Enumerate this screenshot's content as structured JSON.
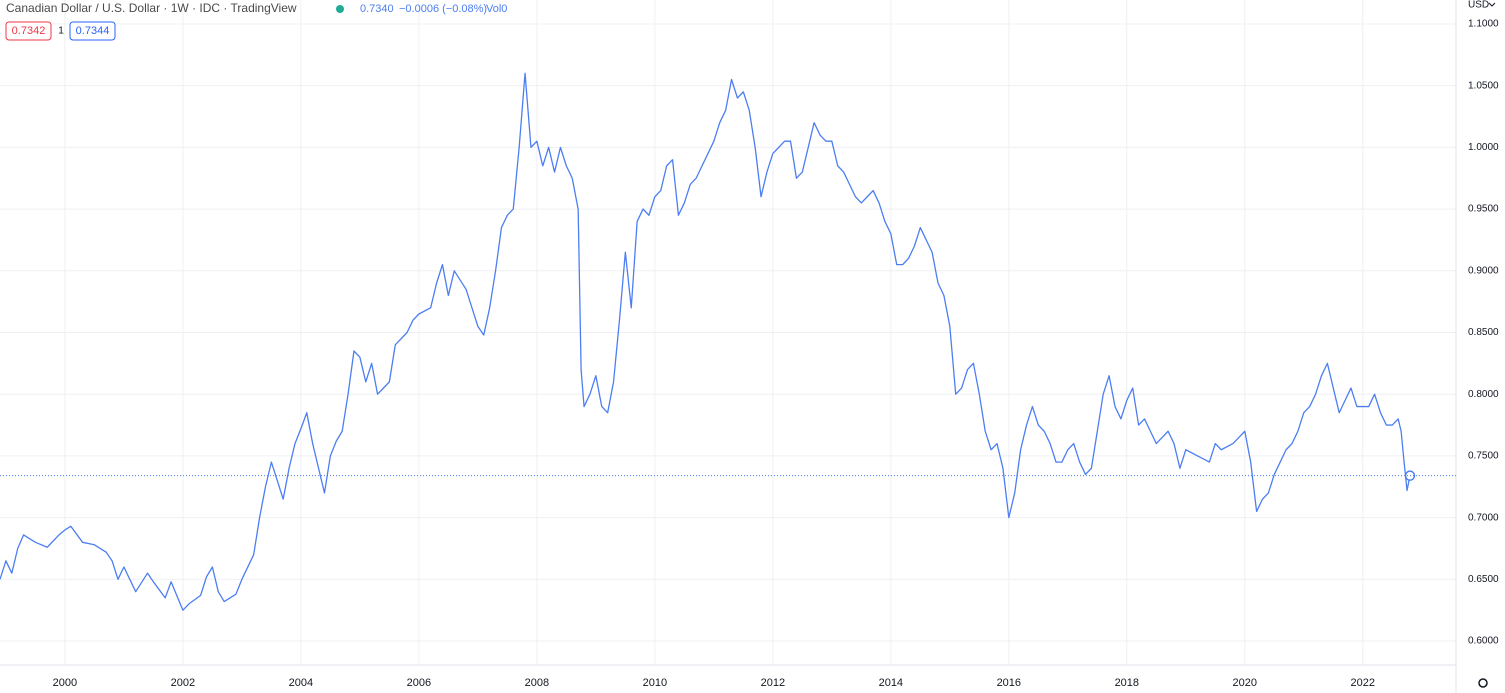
{
  "chart_data": {
    "type": "line",
    "title": "Canadian Dollar / U.S. Dollar · 1W · IDC · TradingView",
    "last_price": {
      "value": 0.734,
      "label": "0.7340"
    },
    "change": "−0.0006 (−0.08%)",
    "volume": "Vol0",
    "bid": "0.7342",
    "spread": "1",
    "ask": "0.7344",
    "currency": "USD",
    "grid": true,
    "series": [
      {
        "name": "CADUSD",
        "color": "#4c7ef2",
        "x": [
          1998.9,
          1999.0,
          1999.1,
          1999.2,
          1999.3,
          1999.5,
          1999.7,
          1999.9,
          2000.0,
          2000.1,
          2000.3,
          2000.5,
          2000.7,
          2000.8,
          2000.9,
          2001.0,
          2001.2,
          2001.4,
          2001.5,
          2001.7,
          2001.8,
          2002.0,
          2002.1,
          2002.3,
          2002.4,
          2002.5,
          2002.6,
          2002.7,
          2002.9,
          2003.0,
          2003.2,
          2003.3,
          2003.4,
          2003.5,
          2003.6,
          2003.7,
          2003.8,
          2003.9,
          2004.0,
          2004.1,
          2004.2,
          2004.3,
          2004.4,
          2004.5,
          2004.6,
          2004.7,
          2004.8,
          2004.9,
          2005.0,
          2005.1,
          2005.2,
          2005.3,
          2005.5,
          2005.6,
          2005.8,
          2005.9,
          2006.0,
          2006.2,
          2006.3,
          2006.4,
          2006.5,
          2006.6,
          2006.8,
          2006.9,
          2007.0,
          2007.1,
          2007.2,
          2007.3,
          2007.4,
          2007.5,
          2007.6,
          2007.7,
          2007.8,
          2007.9,
          2008.0,
          2008.1,
          2008.2,
          2008.3,
          2008.4,
          2008.5,
          2008.6,
          2008.7,
          2008.75,
          2008.8,
          2008.9,
          2009.0,
          2009.1,
          2009.2,
          2009.3,
          2009.4,
          2009.5,
          2009.6,
          2009.7,
          2009.8,
          2009.9,
          2010.0,
          2010.1,
          2010.2,
          2010.3,
          2010.4,
          2010.5,
          2010.6,
          2010.7,
          2010.8,
          2010.9,
          2011.0,
          2011.1,
          2011.2,
          2011.3,
          2011.4,
          2011.5,
          2011.6,
          2011.7,
          2011.8,
          2011.9,
          2012.0,
          2012.1,
          2012.2,
          2012.3,
          2012.4,
          2012.5,
          2012.6,
          2012.7,
          2012.8,
          2012.9,
          2013.0,
          2013.1,
          2013.2,
          2013.3,
          2013.4,
          2013.5,
          2013.6,
          2013.7,
          2013.8,
          2013.9,
          2014.0,
          2014.1,
          2014.2,
          2014.3,
          2014.4,
          2014.5,
          2014.6,
          2014.7,
          2014.8,
          2014.9,
          2015.0,
          2015.1,
          2015.2,
          2015.3,
          2015.4,
          2015.5,
          2015.6,
          2015.7,
          2015.8,
          2015.9,
          2016.0,
          2016.1,
          2016.2,
          2016.3,
          2016.4,
          2016.5,
          2016.6,
          2016.7,
          2016.8,
          2016.9,
          2017.0,
          2017.1,
          2017.2,
          2017.3,
          2017.4,
          2017.5,
          2017.6,
          2017.7,
          2017.8,
          2017.9,
          2018.0,
          2018.1,
          2018.2,
          2018.3,
          2018.4,
          2018.5,
          2018.6,
          2018.7,
          2018.8,
          2018.9,
          2019.0,
          2019.2,
          2019.4,
          2019.5,
          2019.6,
          2019.8,
          2019.9,
          2020.0,
          2020.1,
          2020.2,
          2020.3,
          2020.4,
          2020.5,
          2020.6,
          2020.7,
          2020.8,
          2020.9,
          2021.0,
          2021.1,
          2021.2,
          2021.3,
          2021.4,
          2021.5,
          2021.6,
          2021.7,
          2021.8,
          2021.9,
          2022.0,
          2022.1,
          2022.2,
          2022.3,
          2022.4,
          2022.5,
          2022.6,
          2022.65,
          2022.7,
          2022.75,
          2022.8
        ],
        "values": [
          0.65,
          0.665,
          0.655,
          0.675,
          0.686,
          0.68,
          0.676,
          0.686,
          0.69,
          0.693,
          0.68,
          0.678,
          0.672,
          0.665,
          0.65,
          0.66,
          0.64,
          0.655,
          0.648,
          0.635,
          0.648,
          0.625,
          0.63,
          0.637,
          0.652,
          0.66,
          0.64,
          0.632,
          0.638,
          0.65,
          0.67,
          0.7,
          0.725,
          0.745,
          0.73,
          0.715,
          0.74,
          0.76,
          0.772,
          0.785,
          0.76,
          0.74,
          0.72,
          0.75,
          0.762,
          0.77,
          0.8,
          0.835,
          0.83,
          0.81,
          0.825,
          0.8,
          0.81,
          0.84,
          0.85,
          0.86,
          0.865,
          0.87,
          0.89,
          0.905,
          0.88,
          0.9,
          0.885,
          0.87,
          0.855,
          0.848,
          0.87,
          0.9,
          0.935,
          0.945,
          0.95,
          1.0,
          1.06,
          1.0,
          1.005,
          0.985,
          1.0,
          0.98,
          1.0,
          0.985,
          0.975,
          0.95,
          0.82,
          0.79,
          0.8,
          0.815,
          0.79,
          0.785,
          0.81,
          0.86,
          0.915,
          0.87,
          0.94,
          0.95,
          0.945,
          0.96,
          0.965,
          0.985,
          0.99,
          0.945,
          0.955,
          0.97,
          0.975,
          0.985,
          0.995,
          1.005,
          1.02,
          1.03,
          1.055,
          1.04,
          1.045,
          1.03,
          1.0,
          0.96,
          0.98,
          0.995,
          1.0,
          1.005,
          1.005,
          0.975,
          0.98,
          1.0,
          1.02,
          1.01,
          1.005,
          1.005,
          0.985,
          0.98,
          0.97,
          0.96,
          0.955,
          0.96,
          0.965,
          0.955,
          0.94,
          0.93,
          0.905,
          0.905,
          0.91,
          0.92,
          0.935,
          0.925,
          0.915,
          0.89,
          0.88,
          0.855,
          0.8,
          0.805,
          0.82,
          0.825,
          0.8,
          0.77,
          0.755,
          0.76,
          0.74,
          0.7,
          0.72,
          0.755,
          0.775,
          0.79,
          0.775,
          0.77,
          0.76,
          0.745,
          0.745,
          0.755,
          0.76,
          0.745,
          0.735,
          0.74,
          0.77,
          0.8,
          0.815,
          0.79,
          0.78,
          0.795,
          0.805,
          0.775,
          0.78,
          0.77,
          0.76,
          0.765,
          0.77,
          0.76,
          0.74,
          0.755,
          0.75,
          0.745,
          0.76,
          0.755,
          0.76,
          0.765,
          0.77,
          0.745,
          0.705,
          0.715,
          0.72,
          0.735,
          0.745,
          0.755,
          0.76,
          0.77,
          0.785,
          0.79,
          0.8,
          0.815,
          0.825,
          0.805,
          0.785,
          0.795,
          0.805,
          0.79,
          0.79,
          0.79,
          0.8,
          0.785,
          0.775,
          0.775,
          0.78,
          0.77,
          0.745,
          0.722,
          0.734
        ]
      }
    ],
    "xlim": [
      1998.9,
      2023.58
    ],
    "xticks": [
      2000,
      2002,
      2004,
      2006,
      2008,
      2010,
      2012,
      2014,
      2016,
      2018,
      2020,
      2022
    ],
    "ylim": [
      0.5806,
      1.1194
    ],
    "yticks": [
      {
        "value": 0.6,
        "label": "0.6000"
      },
      {
        "value": 0.65,
        "label": "0.6500"
      },
      {
        "value": 0.7,
        "label": "0.7000"
      },
      {
        "value": 0.75,
        "label": "0.7500"
      },
      {
        "value": 0.8,
        "label": "0.8000"
      },
      {
        "value": 0.85,
        "label": "0.8500"
      },
      {
        "value": 0.9,
        "label": "0.9000"
      },
      {
        "value": 0.95,
        "label": "0.9500"
      },
      {
        "value": 1.0,
        "label": "1.0000"
      },
      {
        "value": 1.05,
        "label": "1.0500"
      },
      {
        "value": 1.1,
        "label": "1.1000"
      }
    ]
  }
}
